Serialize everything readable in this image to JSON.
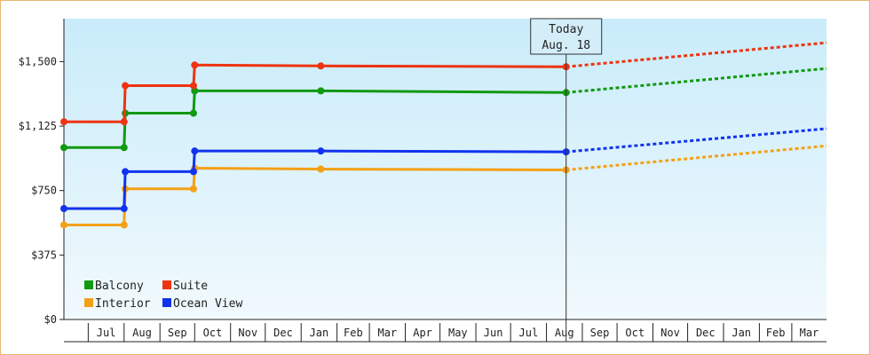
{
  "chart_data": {
    "type": "line",
    "title": "",
    "xlabel": "",
    "ylabel": "",
    "y_ticks": [
      "$0",
      "$375",
      "$750",
      "$1,125",
      "$1,500"
    ],
    "y_tick_values": [
      0,
      375,
      750,
      1125,
      1500
    ],
    "ylim": [
      0,
      1750
    ],
    "x_month_labels": [
      "Jul",
      "Aug",
      "Sep",
      "Oct",
      "Nov",
      "Dec",
      "Jan",
      "Feb",
      "Mar",
      "Apr",
      "May",
      "Jun",
      "Jul",
      "Aug",
      "Sep",
      "Oct",
      "Nov",
      "Dec",
      "Jan",
      "Feb",
      "Mar"
    ],
    "xlim": [
      "2024-06-10",
      "2026-03-31"
    ],
    "grid": false,
    "background": "light-blue-gradient",
    "legend_position": "bottom-left",
    "today": {
      "label": "Today",
      "date_label": "Aug. 18",
      "date": "2025-08-18"
    },
    "series": [
      {
        "name": "Balcony",
        "color": "#119911",
        "points": [
          [
            "2024-06-10",
            1000
          ],
          [
            "2024-08-01",
            1000
          ],
          [
            "2024-08-02",
            1200
          ],
          [
            "2024-09-30",
            1200
          ],
          [
            "2024-10-01",
            1330
          ],
          [
            "2025-01-18",
            1330
          ],
          [
            "2025-08-18",
            1320
          ]
        ],
        "projection": [
          [
            "2025-08-18",
            1320
          ],
          [
            "2026-03-31",
            1460
          ]
        ]
      },
      {
        "name": "Suite",
        "color": "#ee3311",
        "points": [
          [
            "2024-06-10",
            1150
          ],
          [
            "2024-08-01",
            1150
          ],
          [
            "2024-08-02",
            1360
          ],
          [
            "2024-09-30",
            1360
          ],
          [
            "2024-10-01",
            1480
          ],
          [
            "2025-01-18",
            1475
          ],
          [
            "2025-08-18",
            1470
          ]
        ],
        "projection": [
          [
            "2025-08-18",
            1470
          ],
          [
            "2026-03-31",
            1610
          ]
        ]
      },
      {
        "name": "Interior",
        "color": "#f4a017",
        "points": [
          [
            "2024-06-10",
            550
          ],
          [
            "2024-08-01",
            550
          ],
          [
            "2024-08-02",
            760
          ],
          [
            "2024-09-30",
            760
          ],
          [
            "2024-10-01",
            880
          ],
          [
            "2025-01-18",
            875
          ],
          [
            "2025-08-18",
            870
          ]
        ],
        "projection": [
          [
            "2025-08-18",
            870
          ],
          [
            "2026-03-31",
            1010
          ]
        ]
      },
      {
        "name": "Ocean View",
        "color": "#1133ee",
        "points": [
          [
            "2024-06-10",
            645
          ],
          [
            "2024-08-01",
            645
          ],
          [
            "2024-08-02",
            860
          ],
          [
            "2024-09-30",
            860
          ],
          [
            "2024-10-01",
            980
          ],
          [
            "2025-01-18",
            980
          ],
          [
            "2025-08-18",
            975
          ]
        ],
        "projection": [
          [
            "2025-08-18",
            975
          ],
          [
            "2026-03-31",
            1110
          ]
        ]
      }
    ]
  }
}
